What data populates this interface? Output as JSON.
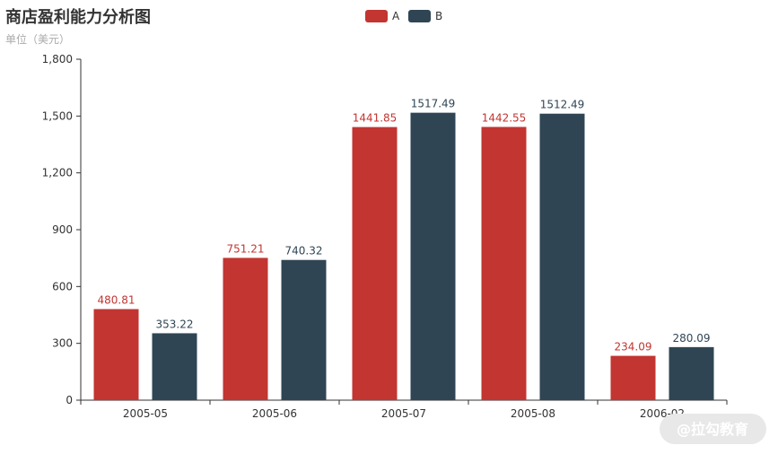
{
  "chart_data": {
    "type": "bar",
    "title": "商店盈利能力分析图",
    "subtitle": "单位（美元）",
    "categories": [
      "2005-05",
      "2005-06",
      "2005-07",
      "2005-08",
      "2006-02"
    ],
    "series": [
      {
        "name": "A",
        "color": "#c23531",
        "values": [
          480.81,
          751.21,
          1441.85,
          1442.55,
          234.09
        ]
      },
      {
        "name": "B",
        "color": "#2f4554",
        "values": [
          353.22,
          740.32,
          1517.49,
          1512.49,
          280.09
        ]
      }
    ],
    "ylim": [
      0,
      1800
    ],
    "yticks": [
      0,
      300,
      600,
      900,
      1200,
      1500,
      1800
    ],
    "ytick_labels": [
      "0",
      "300",
      "600",
      "900",
      "1,200",
      "1,500",
      "1,800"
    ],
    "legend_position": "top-center",
    "grid": false
  },
  "watermark": {
    "text": "@拉勾教育"
  }
}
